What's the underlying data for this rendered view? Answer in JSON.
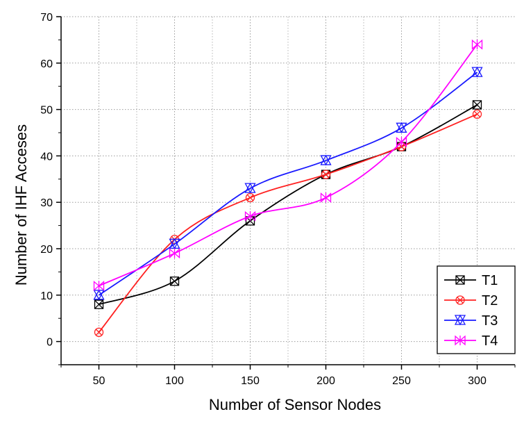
{
  "chart_data": {
    "type": "line",
    "title": "",
    "xlabel": "Number of Sensor Nodes",
    "ylabel": "Number of IHF Acceses",
    "x": [
      50,
      100,
      150,
      200,
      250,
      300
    ],
    "xlim": [
      25,
      325
    ],
    "ylim": [
      -5,
      70
    ],
    "xticks": [
      50,
      100,
      150,
      200,
      250,
      300
    ],
    "yticks": [
      0,
      10,
      20,
      30,
      40,
      50,
      60,
      70
    ],
    "grid": true,
    "legend_position": "bottom-right",
    "series": [
      {
        "name": "T1",
        "color": "#000000",
        "marker": "square-x",
        "values": [
          8,
          13,
          26,
          36,
          42,
          51
        ]
      },
      {
        "name": "T2",
        "color": "#ff2020",
        "marker": "circle-x",
        "values": [
          2,
          22,
          31,
          36,
          42,
          49
        ]
      },
      {
        "name": "T3",
        "color": "#1a1aff",
        "marker": "triangle-star",
        "values": [
          10,
          21,
          33,
          39,
          46,
          58
        ]
      },
      {
        "name": "T4",
        "color": "#ff00ff",
        "marker": "bowtie-star",
        "values": [
          12,
          19,
          27,
          31,
          43,
          64
        ]
      }
    ]
  }
}
